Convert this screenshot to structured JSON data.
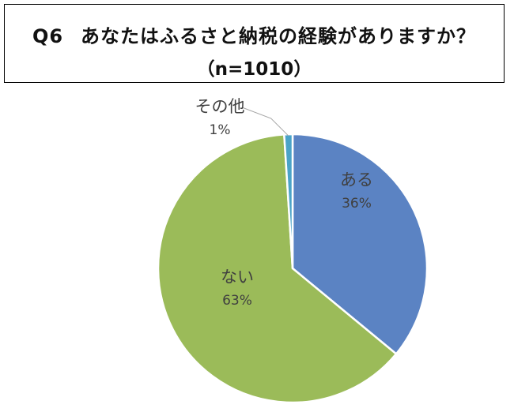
{
  "header": {
    "question_number": "Q6",
    "question": "あなたはふるさと納税の経験がありますか？",
    "sample_size": "（n=1010）"
  },
  "chart_data": {
    "type": "pie",
    "title": "Q6　あなたはふるさと納税の経験がありますか？（n=1010）",
    "slices": [
      {
        "label": "ある",
        "value": 36,
        "value_label": "36%",
        "color": "#5b83c3"
      },
      {
        "label": "ない",
        "value": 63,
        "value_label": "63%",
        "color": "#9bbb59"
      },
      {
        "label": "その他",
        "value": 1,
        "value_label": "1%",
        "color": "#4aa3c8"
      }
    ],
    "start_angle": "12 o'clock",
    "direction": "clockwise",
    "legend": "none",
    "label_style": "inside labels, outside with leader line for その他"
  }
}
